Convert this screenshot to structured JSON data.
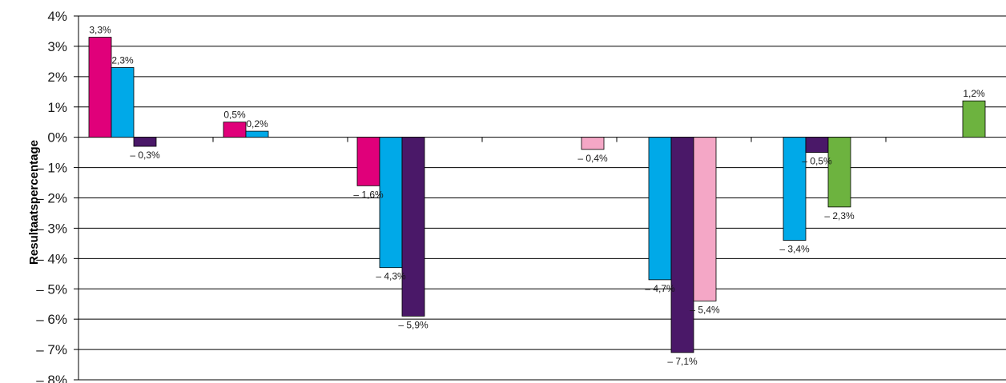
{
  "chart_data": {
    "type": "bar",
    "title": "",
    "xlabel": "",
    "ylabel": "Resultaatspercentage",
    "ylim": [
      -8,
      4
    ],
    "y_ticks": [
      {
        "value": 4,
        "label": "4%"
      },
      {
        "value": 3,
        "label": "3%"
      },
      {
        "value": 2,
        "label": "2%"
      },
      {
        "value": 1,
        "label": "1%"
      },
      {
        "value": 0,
        "label": "0%"
      },
      {
        "value": -1,
        "label": "– 1%"
      },
      {
        "value": -2,
        "label": "– 2%"
      },
      {
        "value": -3,
        "label": "– 3%"
      },
      {
        "value": -4,
        "label": "– 4%"
      },
      {
        "value": -5,
        "label": "– 5%"
      },
      {
        "value": -6,
        "label": "– 6%"
      },
      {
        "value": -7,
        "label": "– 7%"
      },
      {
        "value": -8,
        "label": "– 8%"
      }
    ],
    "grid": true,
    "legend": "none",
    "colors": {
      "magenta": "#e0007a",
      "cyan": "#00a9e8",
      "purple": "#4a1868",
      "pink": "#f4a7c6",
      "green": "#6db33f"
    },
    "groups": [
      {
        "bars": [
          {
            "color": "magenta",
            "value": 3.3,
            "label": "3,3%"
          },
          {
            "color": "cyan",
            "value": 2.3,
            "label": "2,3%"
          },
          {
            "color": "purple",
            "value": -0.3,
            "label": "– 0,3%"
          }
        ]
      },
      {
        "bars": [
          {
            "color": "magenta",
            "value": 0.5,
            "label": "0,5%"
          },
          {
            "color": "cyan",
            "value": 0.2,
            "label": "0,2%"
          }
        ]
      },
      {
        "bars": [
          {
            "color": "magenta",
            "value": -1.6,
            "label": "– 1,6%"
          },
          {
            "color": "cyan",
            "value": -4.3,
            "label": "– 4,3%"
          },
          {
            "color": "purple",
            "value": -5.9,
            "label": "– 5,9%"
          }
        ]
      },
      {
        "bars": [
          {
            "color": "pink",
            "value": -0.4,
            "label": "– 0,4%"
          }
        ]
      },
      {
        "bars": [
          {
            "color": "cyan",
            "value": -4.7,
            "label": "– 4,7%"
          },
          {
            "color": "purple",
            "value": -7.1,
            "label": "– 7,1%"
          },
          {
            "color": "pink",
            "value": -5.4,
            "label": "– 5,4%"
          }
        ]
      },
      {
        "bars": [
          {
            "color": "cyan",
            "value": -3.4,
            "label": "– 3,4%"
          },
          {
            "color": "purple",
            "value": -0.5,
            "label": "– 0,5%"
          },
          {
            "color": "green",
            "value": -2.3,
            "label": "– 2,3%"
          }
        ]
      },
      {
        "bars": [
          {
            "color": "green",
            "value": 1.2,
            "label": "1,2%"
          }
        ]
      }
    ]
  }
}
